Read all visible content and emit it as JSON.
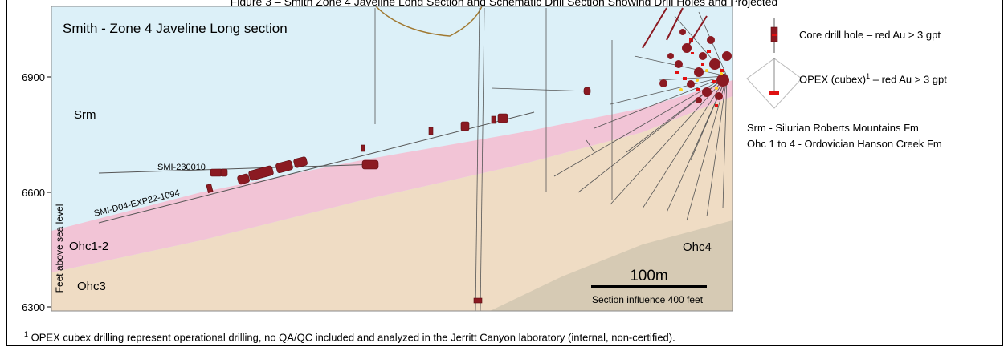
{
  "caption": "Figure 3 – Smith Zone 4 Javeline Long Section and Schematic Drill Section Showing Drill Holes and Projected",
  "section": {
    "title": "Smith - Zone 4 Javeline Long section",
    "y_axis_label": "Feet above sea level",
    "y_ticks": [
      "6900",
      "6600",
      "6300"
    ],
    "units": {
      "Srm": "Srm",
      "Ohc12": "Ohc1-2",
      "Ohc3": "Ohc3",
      "Ohc4": "Ohc4"
    },
    "drill_holes": {
      "hole_a": "SMI-230010",
      "hole_b": "SMI-D04-EXP22-1094"
    },
    "scale_bar": {
      "label": "100m",
      "influence": "Section influence 400 feet"
    }
  },
  "legend": {
    "core_drill": "Core drill hole – red Au > 3 gpt",
    "opex_prefix": "OPEX (cubex)",
    "opex_sup": "1",
    "opex_suffix": " – red Au > 3 gpt",
    "srm": "Srm - Silurian Roberts Mountains Fm",
    "ohc": "Ohc 1 to 4 - Ordovician Hanson Creek Fm"
  },
  "footnote": {
    "sup": "1",
    "text": " OPEX cubex  drilling represent operational drilling, no QA/QC included and analyzed in the Jerritt Canyon laboratory (internal, non-certified)."
  },
  "colors": {
    "srm": "#dcf0f8",
    "ohc12": "#f2c4d6",
    "ohc3": "#efdcc4",
    "ohc4": "#d6cab4",
    "intercept": "#8b1a22",
    "high_grade": "#e01010"
  }
}
